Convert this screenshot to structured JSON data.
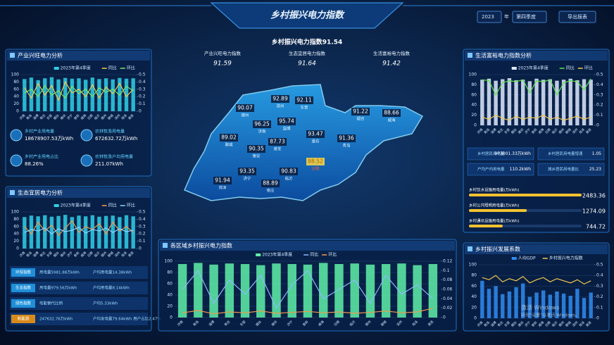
{
  "header": {
    "title": "乡村振兴电力指数",
    "year": "2023",
    "year_unit": "年",
    "quarter": "第四季度",
    "export": "导出报表"
  },
  "index": {
    "title": "乡村振兴电力指数91.54",
    "items": [
      {
        "label": "产业兴旺电力指数",
        "value": "91.59"
      },
      {
        "label": "生态宜居电力指数",
        "value": "91.64"
      },
      {
        "label": "生活富裕电力指数",
        "value": "91.42"
      }
    ]
  },
  "cities": [
    "济南",
    "青岛",
    "淄博",
    "枣庄",
    "东营",
    "烟台",
    "潍坊",
    "济宁",
    "泰安",
    "威海",
    "日照",
    "临沂",
    "德州",
    "聊城",
    "滨州",
    "菏泽",
    "莱芜"
  ],
  "map": {
    "highlight": 11,
    "labels": [
      {
        "value": 90.07,
        "name": "德州"
      },
      {
        "value": 92.89,
        "name": "滨州"
      },
      {
        "value": 92.11,
        "name": "东营"
      },
      {
        "value": 96.25,
        "name": "济南"
      },
      {
        "value": 95.74,
        "name": "淄博"
      },
      {
        "value": 89.02,
        "name": "聊城"
      },
      {
        "value": 87.73,
        "name": "莱芜"
      },
      {
        "value": 90.35,
        "name": "泰安"
      },
      {
        "value": 93.47,
        "name": "潍坊"
      },
      {
        "value": 91.36,
        "name": "青岛"
      },
      {
        "value": 91.22,
        "name": "烟台"
      },
      {
        "value": 88.52,
        "name": "日照"
      },
      {
        "value": 88.66,
        "name": "威海"
      },
      {
        "value": 93.35,
        "name": "济宁"
      },
      {
        "value": 90.83,
        "name": "临沂"
      },
      {
        "value": 91.94,
        "name": "菏泽"
      },
      {
        "value": 88.89,
        "name": "枣庄"
      }
    ]
  },
  "panels": {
    "industry": {
      "title": "产业兴旺电力分析",
      "chart": {
        "ylim": [
          0,
          100
        ],
        "yticks": [
          0,
          20,
          40,
          60,
          80,
          100
        ],
        "y2lim": [
          0,
          0.5
        ],
        "y2ticks": [
          0,
          0.1,
          0.2,
          0.3,
          0.4,
          0.5
        ],
        "series": [
          {
            "name": "2023年第4季度",
            "type": "bar",
            "color": "#2fd0e8",
            "values": [
              88,
              92,
              85,
              90,
              93,
              87,
              91,
              89,
              90,
              86,
              92,
              88,
              90,
              87,
              91,
              89,
              90
            ]
          },
          {
            "name": "同比",
            "type": "line",
            "axis": "y2",
            "color": "#f2c94c",
            "values": [
              0.32,
              0.18,
              0.38,
              0.22,
              0.35,
              0.15,
              0.4,
              0.25,
              0.3,
              0.2,
              0.36,
              0.18,
              0.33,
              0.24,
              0.38,
              0.2,
              0.3
            ]
          },
          {
            "name": "环比",
            "type": "line",
            "axis": "y2",
            "color": "#7ee36b",
            "values": [
              0.25,
              0.3,
              0.2,
              0.35,
              0.22,
              0.28,
              0.18,
              0.34,
              0.24,
              0.3,
              0.2,
              0.32,
              0.26,
              0.3,
              0.22,
              0.34,
              0.28
            ]
          }
        ]
      },
      "stats": [
        {
          "label": "乡村产业用电量",
          "value": "18678907.53万kWh"
        },
        {
          "label": "农林牧渔用电量",
          "value": "672632.72万kWh"
        },
        {
          "label": "乡村产业用电占比",
          "value": "88.26%"
        },
        {
          "label": "农林牧渔户均用电量",
          "value": "211.07kWh"
        }
      ]
    },
    "eco": {
      "title": "生态宜居电力分析",
      "chart": {
        "ylim": [
          0,
          100
        ],
        "yticks": [
          0,
          20,
          40,
          60,
          80,
          100
        ],
        "y2lim": [
          0,
          0.5
        ],
        "y2ticks": [
          0,
          0.1,
          0.2,
          0.3,
          0.4,
          0.5
        ],
        "series": [
          {
            "name": "2023年第4季度",
            "type": "bar",
            "color": "#2fd0e8",
            "values": [
              86,
              90,
              88,
              91,
              87,
              89,
              92,
              86,
              90,
              88,
              91,
              87,
              89,
              90,
              86,
              91,
              88
            ]
          },
          {
            "name": "同比",
            "type": "line",
            "axis": "y2",
            "color": "#f2994a",
            "values": [
              0.3,
              0.2,
              0.36,
              0.24,
              0.32,
              0.18,
              0.28,
              0.38,
              0.22,
              0.3,
              0.26,
              0.34,
              0.2,
              0.36,
              0.24,
              0.3,
              0.22
            ]
          },
          {
            "name": "环比",
            "type": "line",
            "axis": "y2",
            "color": "#8fd3ff",
            "values": [
              0.22,
              0.26,
              0.24,
              0.28,
              0.2,
              0.27,
              0.23,
              0.25,
              0.29,
              0.21,
              0.26,
              0.24,
              0.28,
              0.22,
              0.27,
              0.23,
              0.25
            ]
          }
        ]
      },
      "rows": [
        [
          "环保指数",
          "用电量5981.88万kWh",
          "户均用电量14.38kWh"
        ],
        [
          "生态指数",
          "用电量979.56万kWh",
          "户均用电量8.14kWh"
        ],
        [
          "绿色指数",
          "电能替代比例",
          "户均5.33kWh"
        ],
        [
          "新能源",
          "247632.76万kWh",
          "户均发电量79.64kWh 用户占比2.47%"
        ]
      ]
    },
    "life": {
      "title": "生活富裕电力指数分析",
      "chart": {
        "ylim": [
          0,
          100
        ],
        "yticks": [
          0,
          20,
          40,
          60,
          80,
          100
        ],
        "y2lim": [
          0,
          0.5
        ],
        "y2ticks": [
          0,
          0.1,
          0.2,
          0.3,
          0.4,
          0.5
        ],
        "series": [
          {
            "name": "2023年第4季度",
            "type": "bar",
            "color": "#dfeaff",
            "values": [
              90,
              92,
              88,
              91,
              93,
              89,
              90,
              87,
              92,
              90,
              91,
              88,
              90,
              92,
              89,
              91,
              90
            ]
          },
          {
            "name": "同比",
            "type": "line",
            "axis": "y2",
            "color": "#5be34a",
            "values": [
              0.45,
              0.44,
              0.3,
              0.42,
              0.44,
              0.43,
              0.45,
              0.32,
              0.44,
              0.43,
              0.45,
              0.3,
              0.42,
              0.44,
              0.43,
              0.35,
              0.46
            ]
          },
          {
            "name": "环比",
            "type": "line",
            "axis": "y2",
            "color": "#f2c94c",
            "values": [
              0.08,
              0.06,
              0.1,
              0.07,
              0.05,
              0.09,
              0.06,
              0.08,
              0.07,
              0.1,
              0.06,
              0.08,
              0.05,
              0.07,
              0.09,
              0.06,
              0.08
            ]
          }
        ]
      },
      "stats": [
        {
          "label": "乡村居民用电量",
          "value": "973001.33万kWh"
        },
        {
          "label": "乡村居民用电量增速",
          "value": "1.05"
        },
        {
          "label": "户均户内用电量",
          "value": "110.2kWh"
        },
        {
          "label": "城乡居民用电量比",
          "value": "25.23"
        }
      ],
      "progress": [
        {
          "label": "乡村饮水设施用电量(万kWh)",
          "value": 2483.36
        },
        {
          "label": "乡村公共照明用电量(万kWh)",
          "value": 1274.09
        },
        {
          "label": "乡村通讯设施用电量(万kWh)",
          "value": 744.72
        }
      ]
    },
    "region": {
      "title": "各区域乡村振兴电力指数",
      "chart": {
        "ylim": [
          0,
          100
        ],
        "yticks": [
          0,
          20,
          40,
          60,
          80,
          100
        ],
        "y2lim": [
          0,
          0.12
        ],
        "y2ticks": [
          0,
          0.02,
          0.04,
          0.06,
          0.08,
          0.1,
          0.12
        ],
        "series": [
          {
            "name": "2023年第4季度",
            "type": "bar",
            "color": "#5ff0a8",
            "values": [
              95,
              97,
              94,
              96,
              95,
              93,
              96,
              95,
              94,
              97,
              95,
              96,
              94,
              95,
              96,
              93,
              95
            ]
          },
          {
            "name": "同比",
            "type": "line",
            "axis": "y2",
            "color": "#8fb8ff",
            "values": [
              0.06,
              0.1,
              0.03,
              0.08,
              0.05,
              0.09,
              0.02,
              0.07,
              0.1,
              0.04,
              0.06,
              0.08,
              0.03,
              0.09,
              0.05,
              0.07,
              0.04
            ]
          },
          {
            "name": "环比",
            "type": "line",
            "axis": "y2",
            "color": "#f2994a",
            "values": [
              0.01,
              0.015,
              0.008,
              0.012,
              0.01,
              0.014,
              0.009,
              0.011,
              0.013,
              0.01,
              0.012,
              0.009,
              0.011,
              0.014,
              0.01,
              0.012,
              0.02
            ]
          }
        ]
      }
    },
    "develop": {
      "title": "乡村振兴发展系数",
      "chart": {
        "ylim": [
          0,
          100
        ],
        "yticks": [
          0,
          20,
          40,
          60,
          80,
          100
        ],
        "y2lim": [
          0,
          0.5
        ],
        "y2ticks": [
          0,
          0.1,
          0.2,
          0.3,
          0.4,
          0.5
        ],
        "series": [
          {
            "name": "人均GDP",
            "type": "bar",
            "color": "#2f8cf0",
            "values": [
              70,
              55,
              60,
              45,
              50,
              58,
              65,
              40,
              48,
              52,
              44,
              50,
              46,
              42,
              55,
              38,
              48
            ]
          },
          {
            "name": "乡村振兴电力指数",
            "type": "line",
            "axis": "y2",
            "color": "#f2c94c",
            "values": [
              0.38,
              0.36,
              0.4,
              0.34,
              0.37,
              0.35,
              0.39,
              0.33,
              0.36,
              0.38,
              0.34,
              0.37,
              0.35,
              0.33,
              0.36,
              0.32,
              0.35
            ]
          }
        ]
      }
    }
  },
  "watermark": [
    "激活 Windows",
    "转到“设置”以激活 Windows。"
  ]
}
